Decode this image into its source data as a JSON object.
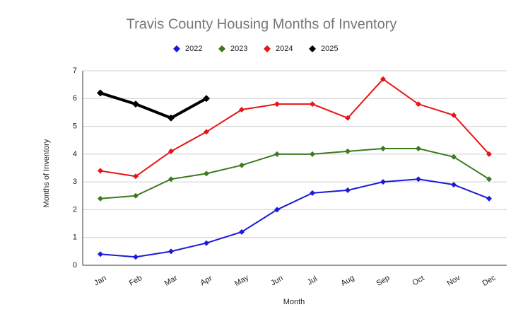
{
  "chart_data": {
    "type": "line",
    "title": "Travis County Housing Months of Inventory",
    "x_label": "Month",
    "y_label": "Months of Inventory",
    "categories": [
      "Jan",
      "Feb",
      "Mar",
      "Apr",
      "May",
      "Jun",
      "Jul",
      "Aug",
      "Sep",
      "Oct",
      "Nov",
      "Dec"
    ],
    "series": [
      {
        "name": "2022",
        "color": "#1a1adb",
        "values": [
          0.4,
          0.3,
          0.5,
          0.8,
          1.2,
          2.0,
          2.6,
          2.7,
          3.0,
          3.1,
          2.9,
          2.4
        ]
      },
      {
        "name": "2023",
        "color": "#3c7a1e",
        "values": [
          2.4,
          2.5,
          3.1,
          3.3,
          3.6,
          4.0,
          4.0,
          4.1,
          4.2,
          4.2,
          3.9,
          3.1
        ]
      },
      {
        "name": "2024",
        "color": "#e81414",
        "values": [
          3.4,
          3.2,
          4.1,
          4.8,
          5.6,
          5.8,
          5.8,
          5.3,
          6.7,
          5.8,
          5.4,
          4.0
        ]
      },
      {
        "name": "2025",
        "color": "#000000",
        "values": [
          6.2,
          5.8,
          5.3,
          6.0,
          null,
          null,
          null,
          null,
          null,
          null,
          null,
          null
        ]
      }
    ],
    "ylim": [
      0,
      7
    ],
    "yticks": [
      0,
      1,
      2,
      3,
      4,
      5,
      6,
      7
    ],
    "grid": true,
    "legend": "top"
  }
}
